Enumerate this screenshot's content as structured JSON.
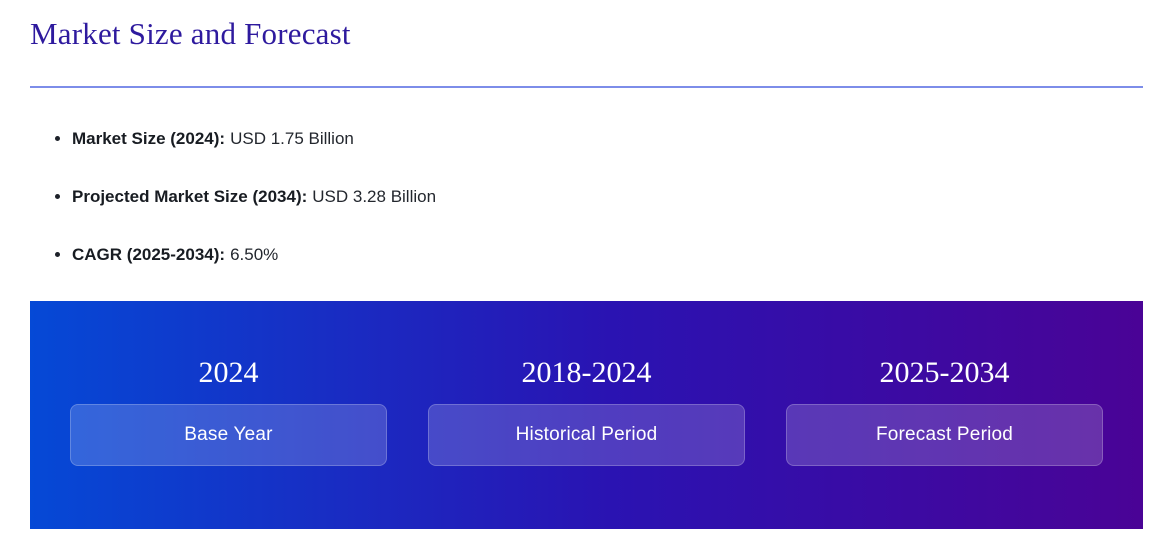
{
  "section": {
    "title": "Market Size and Forecast"
  },
  "stats": [
    {
      "label": "Market Size (2024):",
      "value": "USD 1.75 Billion"
    },
    {
      "label": "Projected Market Size (2034):",
      "value": "USD 3.28 Billion"
    },
    {
      "label": "CAGR (2025-2034):",
      "value": "6.50%"
    }
  ],
  "timeline": [
    {
      "range": "2024",
      "label": "Base Year"
    },
    {
      "range": "2018-2024",
      "label": "Historical Period"
    },
    {
      "range": "2025-2034",
      "label": "Forecast Period"
    }
  ],
  "colors": {
    "title_text": "#2e1a9e",
    "divider": "#7d8de9",
    "body_text": "#1d2129",
    "banner_gradient_start": "#0549d6",
    "banner_gradient_mid": "#2a13b2",
    "banner_gradient_end": "#4a0396",
    "pill_overlay": "rgba(255,255,255,0.18)",
    "banner_text": "#ffffff"
  }
}
